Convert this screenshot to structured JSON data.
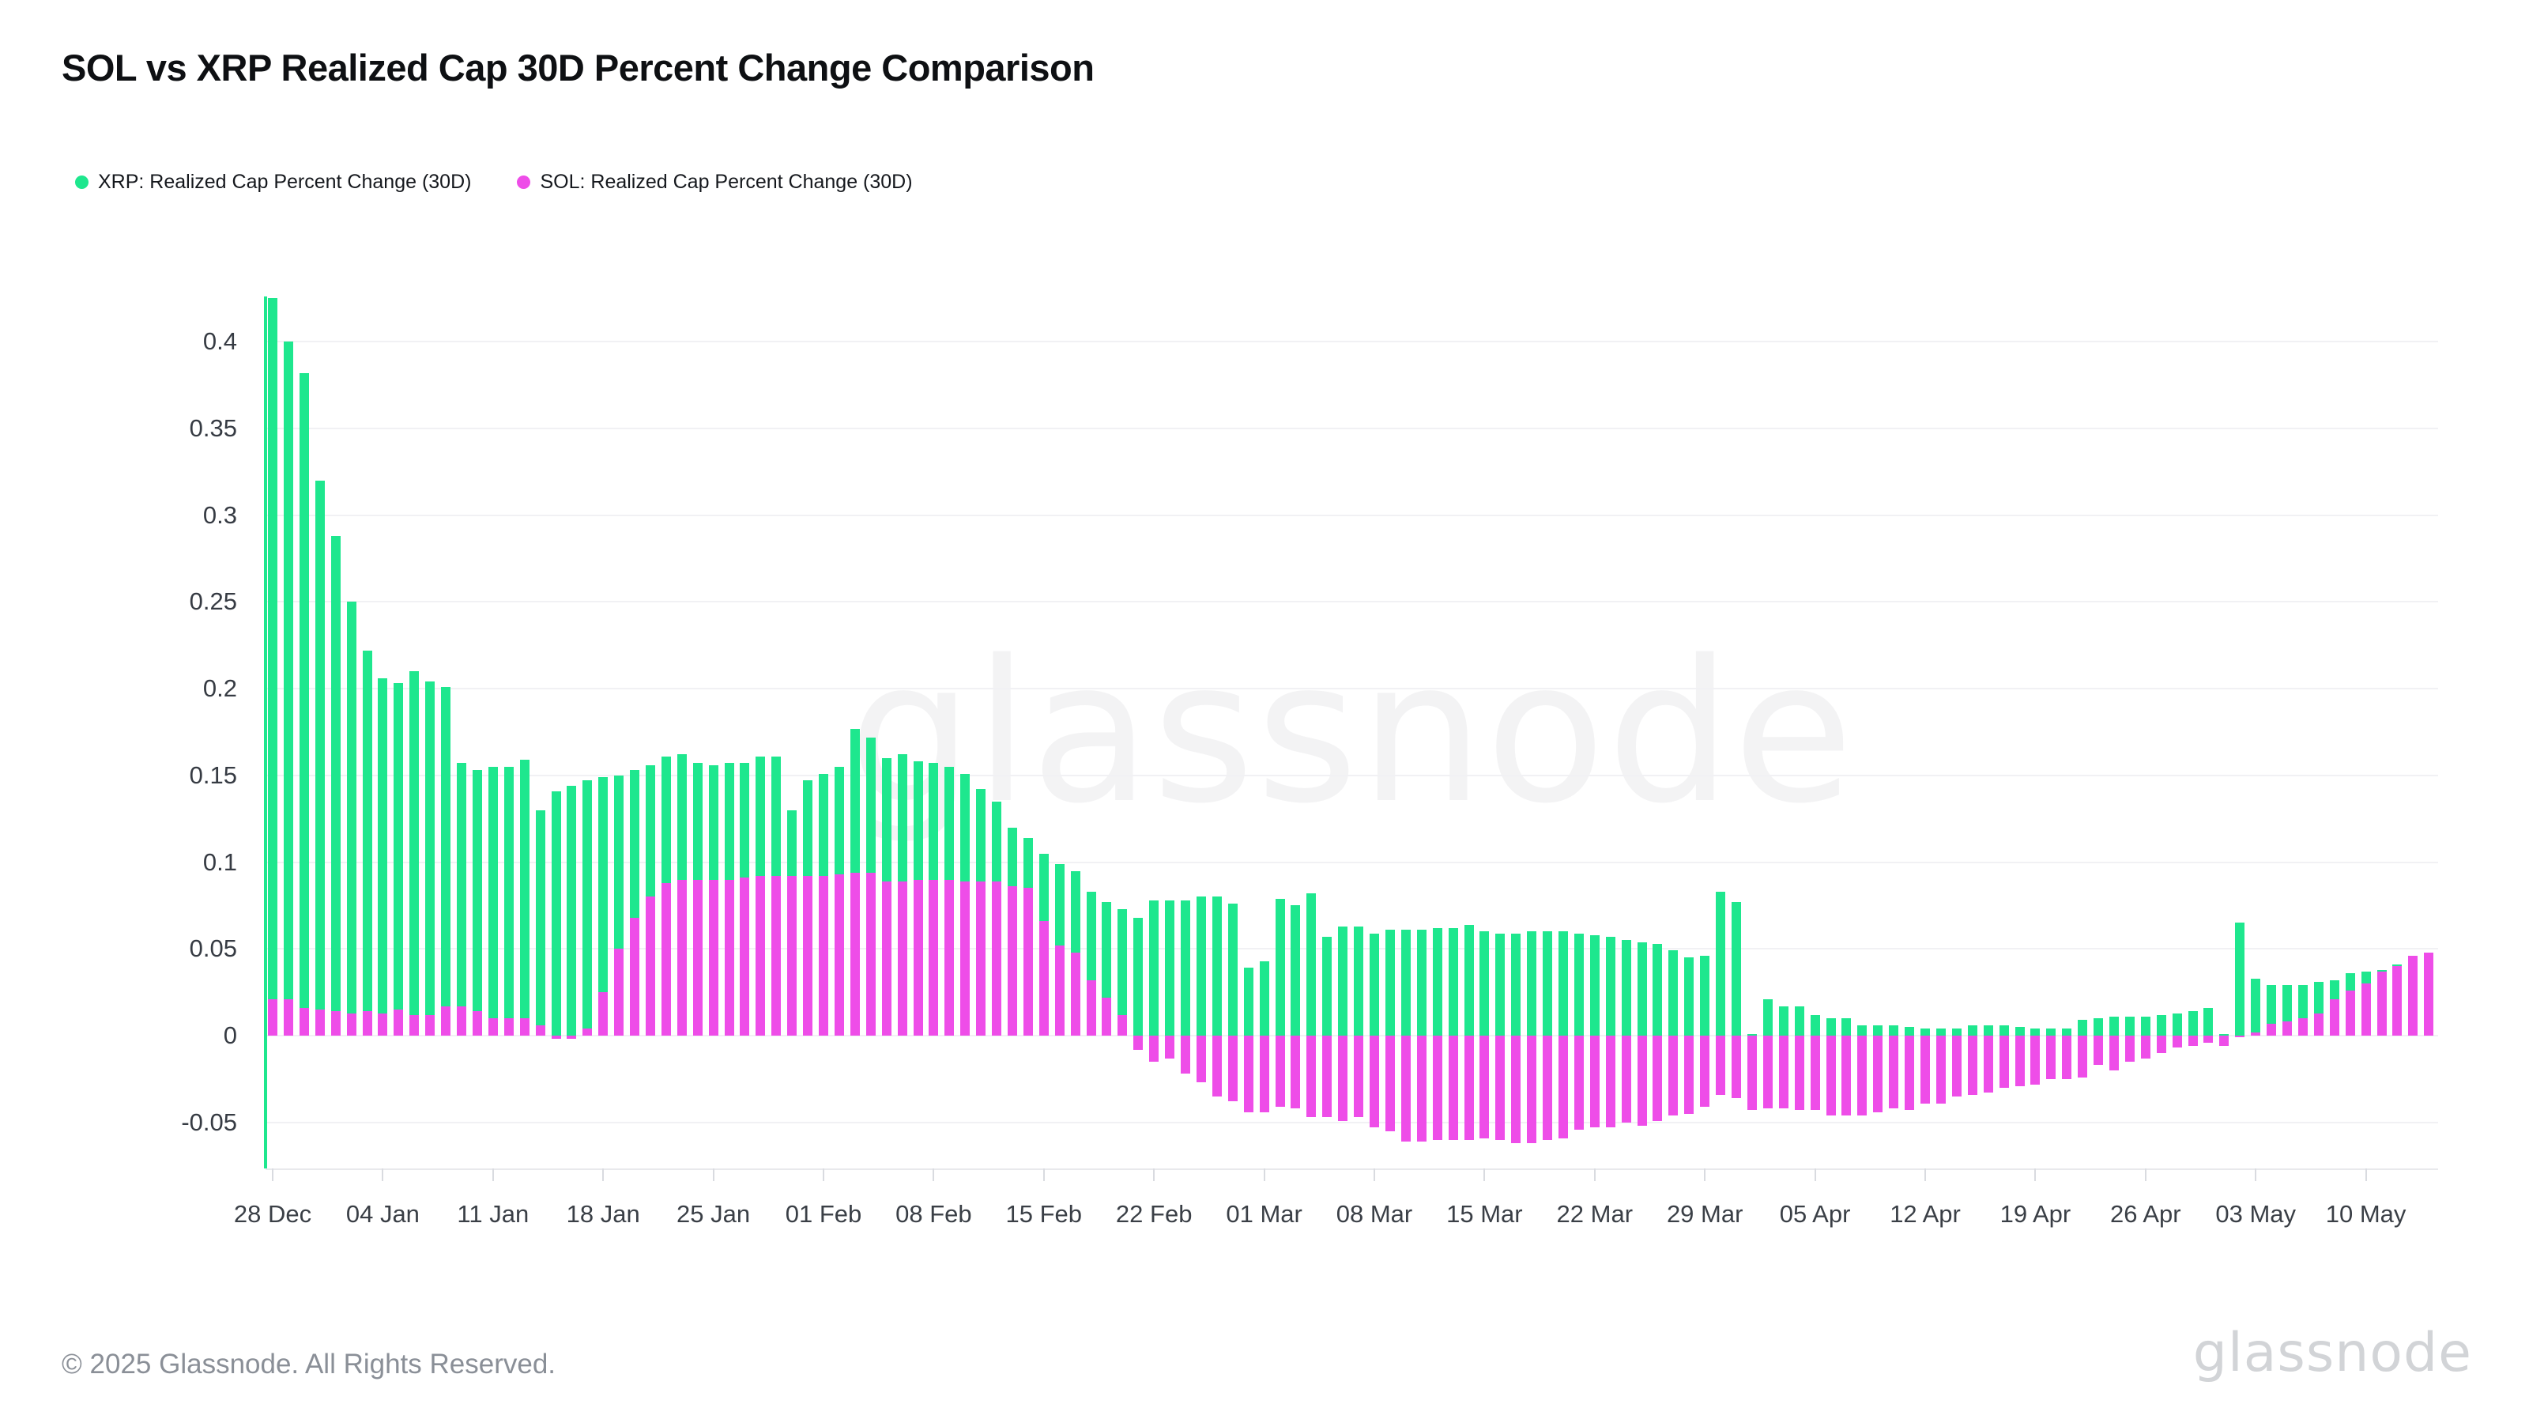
{
  "header": {
    "title": "SOL vs XRP Realized Cap 30D Percent Change Comparison"
  },
  "legend": {
    "items": [
      {
        "label": "XRP: Realized Cap Percent Change (30D)",
        "color": "#1ee78e"
      },
      {
        "label": "SOL: Realized Cap Percent Change (30D)",
        "color": "#ee4de8"
      }
    ]
  },
  "watermark": "glassnode",
  "footer": {
    "copyright": "© 2025 Glassnode. All Rights Reserved.",
    "brand": "glassnode"
  },
  "colors": {
    "xrp": "#1ee78e",
    "sol": "#ee4de8",
    "gridline": "#f1f1f4",
    "axis": "#e8e9ec",
    "tick_text": "#3a3f46",
    "watermark_gray": "#ebebed"
  },
  "chart_data": {
    "type": "bar",
    "title": "SOL vs XRP Realized Cap 30D Percent Change Comparison",
    "xlabel": "",
    "ylabel": "",
    "grid": "horizontal",
    "legend_position": "top-left",
    "ylim": [
      -0.076,
      0.426
    ],
    "yticks": [
      0.4,
      0.35,
      0.3,
      0.25,
      0.2,
      0.15,
      0.1,
      0.05,
      0,
      -0.05
    ],
    "ytick_labels": [
      "0.4",
      "0.35",
      "0.3",
      "0.25",
      "0.2",
      "0.15",
      "0.1",
      "0.05",
      "0",
      "-0.05"
    ],
    "xtick_labels": [
      "28 Dec",
      "04 Jan",
      "11 Jan",
      "18 Jan",
      "25 Jan",
      "01 Feb",
      "08 Feb",
      "15 Feb",
      "22 Feb",
      "01 Mar",
      "08 Mar",
      "15 Mar",
      "22 Mar",
      "29 Mar",
      "05 Apr",
      "12 Apr",
      "19 Apr",
      "26 Apr",
      "03 May",
      "10 May"
    ],
    "dates": [
      "28 Dec",
      "29 Dec",
      "30 Dec",
      "31 Dec",
      "01 Jan",
      "02 Jan",
      "03 Jan",
      "04 Jan",
      "05 Jan",
      "06 Jan",
      "07 Jan",
      "08 Jan",
      "09 Jan",
      "10 Jan",
      "11 Jan",
      "12 Jan",
      "13 Jan",
      "14 Jan",
      "15 Jan",
      "16 Jan",
      "17 Jan",
      "18 Jan",
      "19 Jan",
      "20 Jan",
      "21 Jan",
      "22 Jan",
      "23 Jan",
      "24 Jan",
      "25 Jan",
      "26 Jan",
      "27 Jan",
      "28 Jan",
      "29 Jan",
      "30 Jan",
      "31 Jan",
      "01 Feb",
      "02 Feb",
      "03 Feb",
      "04 Feb",
      "05 Feb",
      "06 Feb",
      "07 Feb",
      "08 Feb",
      "09 Feb",
      "10 Feb",
      "11 Feb",
      "12 Feb",
      "13 Feb",
      "14 Feb",
      "15 Feb",
      "16 Feb",
      "17 Feb",
      "18 Feb",
      "19 Feb",
      "20 Feb",
      "21 Feb",
      "22 Feb",
      "23 Feb",
      "24 Feb",
      "25 Feb",
      "26 Feb",
      "27 Feb",
      "28 Feb",
      "01 Mar",
      "02 Mar",
      "03 Mar",
      "04 Mar",
      "05 Mar",
      "06 Mar",
      "07 Mar",
      "08 Mar",
      "09 Mar",
      "10 Mar",
      "11 Mar",
      "12 Mar",
      "13 Mar",
      "14 Mar",
      "15 Mar",
      "16 Mar",
      "17 Mar",
      "18 Mar",
      "19 Mar",
      "20 Mar",
      "21 Mar",
      "22 Mar",
      "23 Mar",
      "24 Mar",
      "25 Mar",
      "26 Mar",
      "27 Mar",
      "28 Mar",
      "29 Mar",
      "30 Mar",
      "31 Mar",
      "01 Apr",
      "02 Apr",
      "03 Apr",
      "04 Apr",
      "05 Apr",
      "06 Apr",
      "07 Apr",
      "08 Apr",
      "09 Apr",
      "10 Apr",
      "11 Apr",
      "12 Apr",
      "13 Apr",
      "14 Apr",
      "15 Apr",
      "16 Apr",
      "17 Apr",
      "18 Apr",
      "19 Apr",
      "20 Apr",
      "21 Apr",
      "22 Apr",
      "23 Apr",
      "24 Apr",
      "25 Apr",
      "26 Apr",
      "27 Apr",
      "28 Apr",
      "29 Apr",
      "30 Apr",
      "01 May",
      "02 May",
      "03 May",
      "04 May",
      "05 May",
      "06 May",
      "07 May",
      "08 May",
      "09 May",
      "10 May",
      "11 May",
      "12 May",
      "13 May",
      "14 May"
    ],
    "series": [
      {
        "name": "XRP: Realized Cap Percent Change (30D)",
        "color": "#1ee78e",
        "values": [
          0.425,
          0.4,
          0.382,
          0.32,
          0.288,
          0.25,
          0.222,
          0.206,
          0.203,
          0.21,
          0.204,
          0.201,
          0.157,
          0.153,
          0.155,
          0.155,
          0.159,
          0.13,
          0.141,
          0.144,
          0.147,
          0.149,
          0.15,
          0.153,
          0.156,
          0.161,
          0.162,
          0.157,
          0.156,
          0.157,
          0.157,
          0.161,
          0.161,
          0.13,
          0.147,
          0.151,
          0.155,
          0.177,
          0.172,
          0.16,
          0.162,
          0.158,
          0.157,
          0.155,
          0.151,
          0.142,
          0.135,
          0.12,
          0.114,
          0.105,
          0.099,
          0.095,
          0.083,
          0.077,
          0.073,
          0.068,
          0.078,
          0.078,
          0.078,
          0.08,
          0.08,
          0.076,
          0.039,
          0.043,
          0.079,
          0.075,
          0.082,
          0.057,
          0.063,
          0.063,
          0.059,
          0.061,
          0.061,
          0.061,
          0.062,
          0.062,
          0.064,
          0.06,
          0.059,
          0.059,
          0.06,
          0.06,
          0.06,
          0.059,
          0.058,
          0.057,
          0.055,
          0.054,
          0.053,
          0.049,
          0.045,
          0.046,
          0.083,
          0.077,
          0.001,
          0.021,
          0.017,
          0.017,
          0.012,
          0.01,
          0.01,
          0.006,
          0.006,
          0.006,
          0.005,
          0.004,
          0.004,
          0.004,
          0.006,
          0.006,
          0.006,
          0.005,
          0.004,
          0.004,
          0.004,
          0.009,
          0.01,
          0.011,
          0.011,
          0.011,
          0.012,
          0.013,
          0.014,
          0.016,
          0.001,
          0.065,
          0.033,
          0.029,
          0.029,
          0.029,
          0.031,
          0.032,
          0.036,
          0.037,
          0.038,
          0.041,
          0.041,
          0.042
        ]
      },
      {
        "name": "SOL: Realized Cap Percent Change (30D)",
        "color": "#ee4de8",
        "values": [
          0.021,
          0.021,
          0.016,
          0.015,
          0.014,
          0.013,
          0.014,
          0.013,
          0.015,
          0.012,
          0.012,
          0.017,
          0.017,
          0.014,
          0.01,
          0.01,
          0.01,
          0.006,
          -0.002,
          -0.002,
          0.004,
          0.025,
          0.05,
          0.068,
          0.08,
          0.088,
          0.09,
          0.09,
          0.09,
          0.09,
          0.091,
          0.092,
          0.092,
          0.092,
          0.092,
          0.092,
          0.093,
          0.094,
          0.094,
          0.089,
          0.089,
          0.09,
          0.09,
          0.09,
          0.089,
          0.089,
          0.089,
          0.086,
          0.085,
          0.066,
          0.052,
          0.048,
          0.032,
          0.022,
          0.012,
          -0.008,
          -0.015,
          -0.013,
          -0.022,
          -0.027,
          -0.035,
          -0.038,
          -0.044,
          -0.044,
          -0.041,
          -0.042,
          -0.047,
          -0.047,
          -0.049,
          -0.047,
          -0.053,
          -0.055,
          -0.061,
          -0.061,
          -0.06,
          -0.06,
          -0.06,
          -0.059,
          -0.06,
          -0.062,
          -0.062,
          -0.06,
          -0.059,
          -0.054,
          -0.053,
          -0.053,
          -0.05,
          -0.052,
          -0.049,
          -0.046,
          -0.045,
          -0.041,
          -0.034,
          -0.036,
          -0.043,
          -0.042,
          -0.042,
          -0.043,
          -0.043,
          -0.046,
          -0.046,
          -0.046,
          -0.044,
          -0.042,
          -0.043,
          -0.039,
          -0.039,
          -0.035,
          -0.034,
          -0.033,
          -0.03,
          -0.029,
          -0.028,
          -0.025,
          -0.025,
          -0.024,
          -0.017,
          -0.02,
          -0.015,
          -0.013,
          -0.01,
          -0.007,
          -0.006,
          -0.004,
          -0.006,
          -0.001,
          0.002,
          0.007,
          0.008,
          0.01,
          0.013,
          0.021,
          0.026,
          0.03,
          0.037,
          0.04,
          0.046,
          0.048
        ]
      }
    ]
  }
}
